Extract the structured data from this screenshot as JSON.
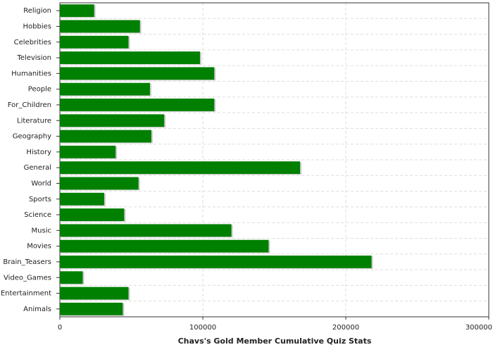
{
  "chart_data": {
    "type": "hbar",
    "title": "Chavs's Gold Member Cumulative Quiz Stats",
    "categories": [
      "Religion",
      "Hobbies",
      "Celebrities",
      "Television",
      "Humanities",
      "People",
      "For_Children",
      "Literature",
      "Geography",
      "History",
      "General",
      "World",
      "Sports",
      "Science",
      "Music",
      "Movies",
      "Brain_Teasers",
      "Video_Games",
      "Entertainment",
      "Animals"
    ],
    "values": [
      24000,
      56000,
      48000,
      98000,
      108000,
      63000,
      108000,
      73000,
      64000,
      39000,
      168000,
      55000,
      31000,
      45000,
      120000,
      146000,
      218000,
      16000,
      48000,
      44000
    ],
    "color": "#008000",
    "xlim": [
      0,
      300000
    ],
    "xticks": [
      0,
      100000,
      200000,
      300000
    ],
    "grid": true
  }
}
